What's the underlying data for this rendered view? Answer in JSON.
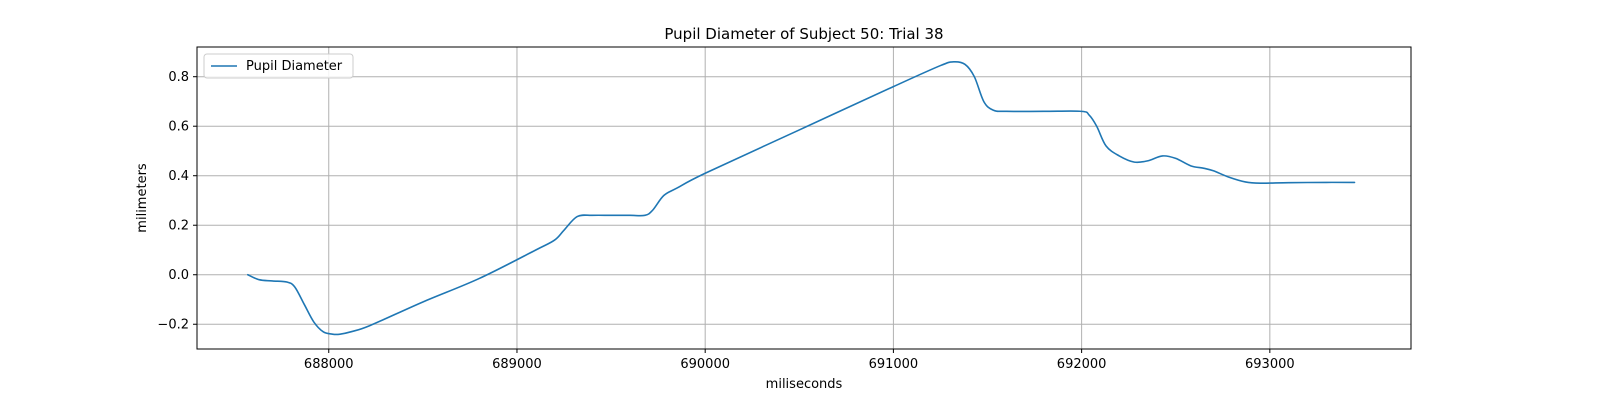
{
  "chart_data": {
    "type": "line",
    "title": "Pupil Diameter of Subject 50: Trial 38",
    "xlabel": "miliseconds",
    "ylabel": "milimeters",
    "xlim": [
      687300,
      693750
    ],
    "ylim": [
      -0.3,
      0.92
    ],
    "xticks": [
      688000,
      689000,
      690000,
      691000,
      692000,
      693000
    ],
    "yticks": [
      -0.2,
      0.0,
      0.2,
      0.4,
      0.6,
      0.8
    ],
    "grid": true,
    "legend_position": "top-left",
    "series": [
      {
        "name": "Pupil Diameter",
        "color": "#1f77b4",
        "x": [
          687570,
          687630,
          687700,
          687780,
          687820,
          687870,
          687920,
          687970,
          688020,
          688060,
          688120,
          688220,
          688500,
          688800,
          689100,
          689200,
          689250,
          689320,
          689400,
          689500,
          689600,
          689680,
          689720,
          689780,
          689850,
          690000,
          690500,
          691000,
          691250,
          691320,
          691380,
          691430,
          691480,
          691530,
          691600,
          691800,
          692000,
          692040,
          692080,
          692130,
          692200,
          692280,
          692350,
          692430,
          692500,
          692580,
          692650,
          692700,
          692780,
          692870,
          692950,
          693100,
          693300,
          693450
        ],
        "y": [
          0.0,
          -0.02,
          -0.025,
          -0.03,
          -0.05,
          -0.12,
          -0.19,
          -0.23,
          -0.24,
          -0.24,
          -0.23,
          -0.205,
          -0.11,
          -0.015,
          0.1,
          0.14,
          0.18,
          0.235,
          0.24,
          0.24,
          0.24,
          0.24,
          0.26,
          0.32,
          0.35,
          0.41,
          0.585,
          0.76,
          0.845,
          0.86,
          0.85,
          0.8,
          0.7,
          0.665,
          0.66,
          0.66,
          0.66,
          0.645,
          0.6,
          0.52,
          0.48,
          0.455,
          0.46,
          0.48,
          0.47,
          0.44,
          0.43,
          0.42,
          0.395,
          0.375,
          0.37,
          0.372,
          0.373,
          0.373
        ]
      }
    ]
  }
}
